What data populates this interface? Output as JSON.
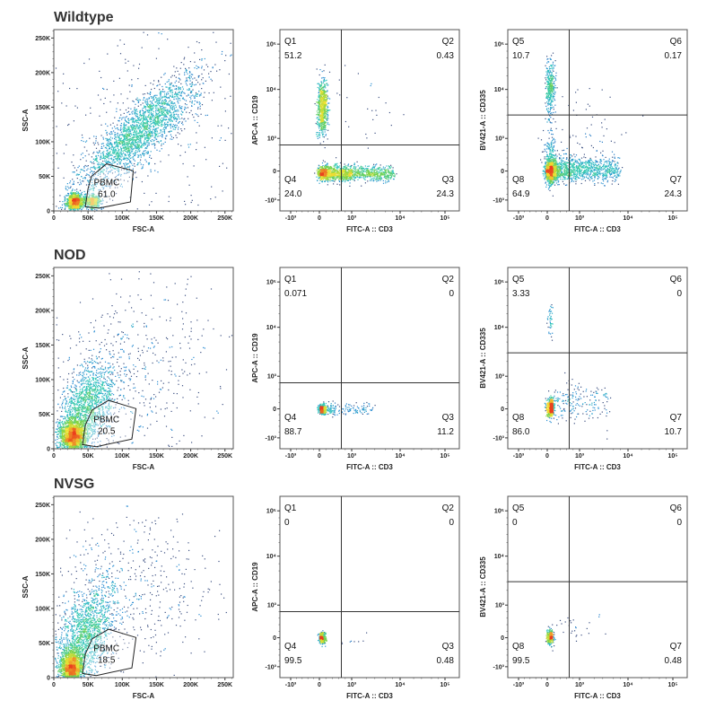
{
  "figure": {
    "row_titles": [
      "Wildtype",
      "NOD",
      "NVSG"
    ]
  },
  "chart_data": [
    {
      "type": "scatter",
      "row": 0,
      "col": 0,
      "kind": "fsc-ssc",
      "xlabel": "FSC-A",
      "ylabel": "SSC-A",
      "xlim": [
        0,
        262144
      ],
      "ylim": [
        0,
        262144
      ],
      "ticks": [
        0,
        50000,
        100000,
        150000,
        200000,
        250000
      ],
      "tick_labels": [
        "0",
        "50K",
        "100K",
        "150K",
        "200K",
        "250K"
      ],
      "gate": {
        "name": "PBMC",
        "value": "61.0",
        "polygon": [
          [
            46000,
            6000
          ],
          [
            50000,
            32000
          ],
          [
            55000,
            50000
          ],
          [
            77000,
            68000
          ],
          [
            116000,
            58000
          ],
          [
            112000,
            13000
          ],
          [
            66000,
            4000
          ]
        ]
      },
      "populations": [
        {
          "x": 30000,
          "y": 14000,
          "sx": 6000,
          "sy": 6000,
          "n": 900
        },
        {
          "x": 56000,
          "y": 14000,
          "sx": 6000,
          "sy": 5000,
          "n": 450
        },
        {
          "x": 125000,
          "y": 115000,
          "sx": 45000,
          "sy": 42000,
          "rho": 0.85,
          "n": 2400
        },
        {
          "x": 130000,
          "y": 130000,
          "sx": 75000,
          "sy": 75000,
          "n": 300
        }
      ]
    },
    {
      "type": "scatter",
      "row": 0,
      "col": 1,
      "kind": "quadrant",
      "xlabel": "FITC-A :: CD3",
      "ylabel": "APC-A :: CD19",
      "tick_values": [
        -1000,
        0,
        1000,
        10000,
        100000
      ],
      "tick_labels": [
        "-10³",
        "0",
        "10³",
        "10⁴",
        "10⁵"
      ],
      "gates": {
        "x": 680,
        "y": 800
      },
      "quadrants": [
        {
          "name": "Q1",
          "value": "51.2",
          "pos": "top-left"
        },
        {
          "name": "Q2",
          "value": "0.43",
          "pos": "top-right"
        },
        {
          "name": "Q3",
          "value": "24.3",
          "pos": "bottom-right"
        },
        {
          "name": "Q4",
          "value": "24.0",
          "pos": "bottom-left"
        }
      ],
      "populations": [
        {
          "x": 80,
          "y": 4500,
          "sx": 0.08,
          "sy": 0.28,
          "n": 700
        },
        {
          "x": 80,
          "y": -80,
          "sx": 0.08,
          "sy": 0.12,
          "n": 350
        },
        {
          "band": true,
          "t0": 0.2,
          "t1": 1.85,
          "y": -60,
          "sy": 0.13,
          "n": 1100
        },
        {
          "x": 3000,
          "y": 5000,
          "sx": 0.5,
          "sy": 0.4,
          "n": 25
        }
      ]
    },
    {
      "type": "scatter",
      "row": 0,
      "col": 2,
      "kind": "quadrant",
      "xlabel": "FITC-A :: CD3",
      "ylabel": "BV421-A :: CD335",
      "tick_values": [
        -1000,
        0,
        1000,
        10000,
        100000
      ],
      "tick_labels": [
        "-10³",
        "0",
        "10³",
        "10⁴",
        "10⁵"
      ],
      "gates": {
        "x": 680,
        "y": 3000
      },
      "quadrants": [
        {
          "name": "Q5",
          "value": "10.7",
          "pos": "top-left"
        },
        {
          "name": "Q6",
          "value": "0.17",
          "pos": "top-right"
        },
        {
          "name": "Q7",
          "value": "24.3",
          "pos": "bottom-right"
        },
        {
          "name": "Q8",
          "value": "64.9",
          "pos": "bottom-left"
        }
      ],
      "populations": [
        {
          "x": 80,
          "y": 11700,
          "sx": 0.07,
          "sy": 0.25,
          "n": 350
        },
        {
          "x": 80,
          "y": 0,
          "sx": 0.08,
          "sy": 0.18,
          "n": 1000
        },
        {
          "x": 80,
          "y": 400,
          "sx": 0.1,
          "sy": 0.45,
          "n": 200
        },
        {
          "band": true,
          "t0": 0.2,
          "t1": 1.8,
          "y": 50,
          "sy": 0.2,
          "n": 1000
        },
        {
          "x": 1500,
          "y": 1500,
          "sx": 0.5,
          "sy": 0.5,
          "n": 60
        }
      ]
    },
    {
      "type": "scatter",
      "row": 1,
      "col": 0,
      "kind": "fsc-ssc",
      "xlabel": "FSC-A",
      "ylabel": "SSC-A",
      "xlim": [
        0,
        262144
      ],
      "ylim": [
        0,
        262144
      ],
      "ticks": [
        0,
        50000,
        100000,
        150000,
        200000,
        250000
      ],
      "tick_labels": [
        "0",
        "50K",
        "100K",
        "150K",
        "200K",
        "250K"
      ],
      "gate": {
        "name": "PBMC",
        "value": "20.5",
        "polygon": [
          [
            42000,
            6000
          ],
          [
            46000,
            34000
          ],
          [
            56000,
            56000
          ],
          [
            80000,
            70000
          ],
          [
            120000,
            58000
          ],
          [
            114000,
            14000
          ],
          [
            62000,
            3000
          ]
        ]
      },
      "populations": [
        {
          "x": 28000,
          "y": 18000,
          "sx": 9000,
          "sy": 11000,
          "n": 1600
        },
        {
          "x": 45000,
          "y": 55000,
          "sx": 22000,
          "sy": 35000,
          "rho": 0.5,
          "n": 1700
        },
        {
          "x": 120000,
          "y": 120000,
          "sx": 65000,
          "sy": 65000,
          "n": 500
        }
      ]
    },
    {
      "type": "scatter",
      "row": 1,
      "col": 1,
      "kind": "quadrant",
      "xlabel": "FITC-A :: CD3",
      "ylabel": "APC-A :: CD19",
      "tick_values": [
        -1000,
        0,
        1000,
        10000,
        100000
      ],
      "tick_labels": [
        "-10³",
        "0",
        "10³",
        "10⁴",
        "10⁵"
      ],
      "gates": {
        "x": 680,
        "y": 800
      },
      "quadrants": [
        {
          "name": "Q1",
          "value": "0.071",
          "pos": "top-left"
        },
        {
          "name": "Q2",
          "value": "0",
          "pos": "top-right"
        },
        {
          "name": "Q3",
          "value": "11.2",
          "pos": "bottom-right"
        },
        {
          "name": "Q4",
          "value": "88.7",
          "pos": "bottom-left"
        }
      ],
      "populations": [
        {
          "x": 80,
          "y": 0,
          "sx": 0.06,
          "sy": 0.08,
          "n": 450
        },
        {
          "band": true,
          "t0": 0.25,
          "t1": 1.4,
          "y": 0,
          "sy": 0.1,
          "n": 140
        }
      ]
    },
    {
      "type": "scatter",
      "row": 1,
      "col": 2,
      "kind": "quadrant",
      "xlabel": "FITC-A :: CD3",
      "ylabel": "BV421-A :: CD335",
      "tick_values": [
        -1000,
        0,
        1000,
        10000,
        100000
      ],
      "tick_labels": [
        "-10³",
        "0",
        "10³",
        "10⁴",
        "10⁵"
      ],
      "gates": {
        "x": 680,
        "y": 3000
      },
      "quadrants": [
        {
          "name": "Q5",
          "value": "3.33",
          "pos": "top-left"
        },
        {
          "name": "Q6",
          "value": "0",
          "pos": "top-right"
        },
        {
          "name": "Q7",
          "value": "10.7",
          "pos": "bottom-right"
        },
        {
          "name": "Q8",
          "value": "86.0",
          "pos": "bottom-left"
        }
      ],
      "populations": [
        {
          "x": 80,
          "y": 15000,
          "sx": 0.04,
          "sy": 0.2,
          "n": 40
        },
        {
          "x": 80,
          "y": 50,
          "sx": 0.06,
          "sy": 0.15,
          "n": 450
        },
        {
          "band": true,
          "t0": 0.25,
          "t1": 1.6,
          "y": 200,
          "sy": 0.3,
          "n": 180
        }
      ]
    },
    {
      "type": "scatter",
      "row": 2,
      "col": 0,
      "kind": "fsc-ssc",
      "xlabel": "FSC-A",
      "ylabel": "SSC-A",
      "xlim": [
        0,
        262144
      ],
      "ylim": [
        0,
        262144
      ],
      "ticks": [
        0,
        50000,
        100000,
        150000,
        200000,
        250000
      ],
      "tick_labels": [
        "0",
        "50K",
        "100K",
        "150K",
        "200K",
        "250K"
      ],
      "gate": {
        "name": "PBMC",
        "value": "18.5",
        "polygon": [
          [
            42000,
            6000
          ],
          [
            46000,
            34000
          ],
          [
            56000,
            56000
          ],
          [
            80000,
            70000
          ],
          [
            120000,
            58000
          ],
          [
            114000,
            14000
          ],
          [
            62000,
            3000
          ]
        ]
      },
      "populations": [
        {
          "x": 25000,
          "y": 15000,
          "sx": 8000,
          "sy": 12000,
          "n": 1500
        },
        {
          "x": 45000,
          "y": 60000,
          "sx": 22000,
          "sy": 40000,
          "rho": 0.5,
          "n": 1700
        },
        {
          "x": 110000,
          "y": 130000,
          "sx": 60000,
          "sy": 60000,
          "n": 450
        }
      ]
    },
    {
      "type": "scatter",
      "row": 2,
      "col": 1,
      "kind": "quadrant",
      "xlabel": "FITC-A :: CD3",
      "ylabel": "APC-A :: CD19",
      "tick_values": [
        -1000,
        0,
        1000,
        10000,
        100000
      ],
      "tick_labels": [
        "-10³",
        "0",
        "10³",
        "10⁴",
        "10⁵"
      ],
      "gates": {
        "x": 680,
        "y": 800
      },
      "quadrants": [
        {
          "name": "Q1",
          "value": "0",
          "pos": "top-left"
        },
        {
          "name": "Q2",
          "value": "0",
          "pos": "top-right"
        },
        {
          "name": "Q3",
          "value": "0.48",
          "pos": "bottom-right"
        },
        {
          "name": "Q4",
          "value": "99.5",
          "pos": "bottom-left"
        }
      ],
      "populations": [
        {
          "x": 80,
          "y": 0,
          "sx": 0.05,
          "sy": 0.09,
          "n": 350
        },
        {
          "x": 1000,
          "y": -100,
          "sx": 0.2,
          "sy": 0.1,
          "n": 8
        }
      ]
    },
    {
      "type": "scatter",
      "row": 2,
      "col": 2,
      "kind": "quadrant",
      "xlabel": "FITC-A :: CD3",
      "ylabel": "BV421-A :: CD335",
      "tick_values": [
        -1000,
        0,
        1000,
        10000,
        100000
      ],
      "tick_labels": [
        "-10³",
        "0",
        "10³",
        "10⁴",
        "10⁵"
      ],
      "gates": {
        "x": 680,
        "y": 3000
      },
      "quadrants": [
        {
          "name": "Q5",
          "value": "0",
          "pos": "top-left"
        },
        {
          "name": "Q6",
          "value": "0",
          "pos": "top-right"
        },
        {
          "name": "Q7",
          "value": "0.48",
          "pos": "bottom-right"
        },
        {
          "name": "Q8",
          "value": "99.5",
          "pos": "bottom-left"
        }
      ],
      "populations": [
        {
          "x": 80,
          "y": 50,
          "sx": 0.05,
          "sy": 0.12,
          "n": 350
        },
        {
          "x": 900,
          "y": 400,
          "sx": 0.3,
          "sy": 0.25,
          "n": 25
        }
      ]
    }
  ]
}
